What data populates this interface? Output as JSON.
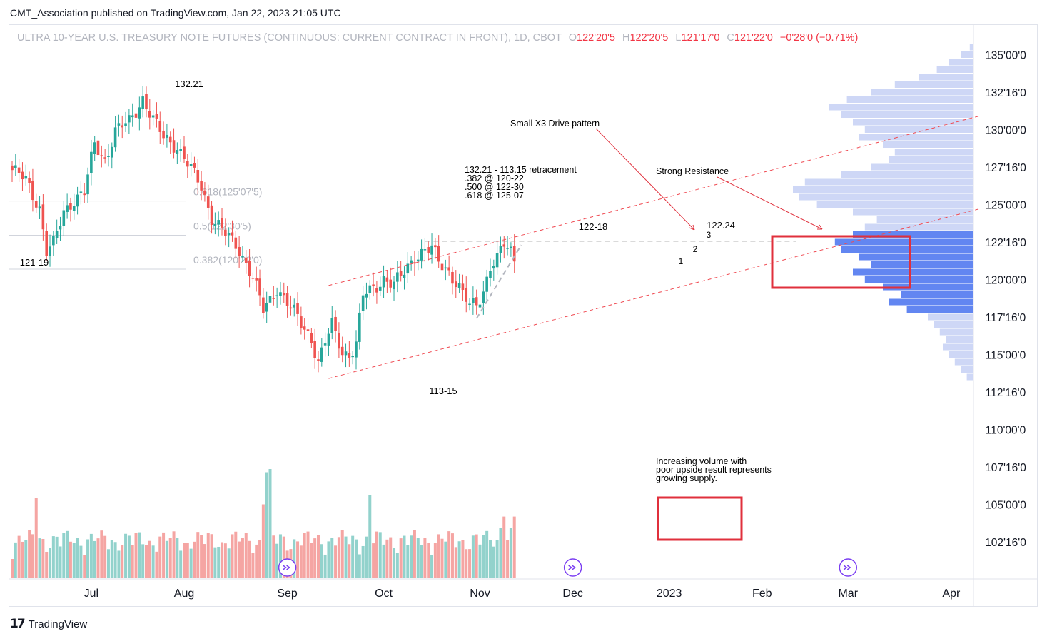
{
  "publisher": {
    "text": "CMT_Association published on TradingView.com, Jan 22, 2023 21:05 UTC"
  },
  "legend": {
    "instrument": "ULTRA 10-YEAR U.S. TREASURY NOTE FUTURES (CONTINUOUS: CURRENT CONTRACT IN FRONT), 1D, CBOT",
    "o_label": "O",
    "o_value": "122'20'5",
    "h_label": "H",
    "h_value": "122'20'5",
    "l_label": "L",
    "l_value": "121'17'0",
    "c_label": "C",
    "c_value": "121'22'0",
    "change": "−0'28'0 (−0.71%)"
  },
  "footer": {
    "brand": "TradingView",
    "logo_icon": "tradingview-logo-icon"
  },
  "colors": {
    "up": "#26a69a",
    "down": "#ef5350",
    "vol_up": "#92d2cc",
    "vol_down": "#f5a5a3",
    "profile_light": "#c5d0f5",
    "profile_strong": "#5a7ff0",
    "annotation_red": "#e0303c",
    "dash_red": "#f04a52"
  },
  "annotations": {
    "high_label": "132.21",
    "low_label_left": "121-19",
    "low_label": "113-15",
    "dec_high_label": "122-18",
    "recent_high_label": "122.24",
    "wave_1": "1",
    "wave_2": "2",
    "wave_3": "3",
    "x3_title": "Small X3 Drive pattern",
    "resistance": "Strong Resistance",
    "retracement_note": "132.21 - 113.15 retracement\n.382 @ 120-22\n.500 @ 122-30\n.618 @ 125-07",
    "volume_note": "Increasing volume with\npoor upside result represents\ngrowing supply.",
    "fib_618": "0.618(125'07'5)",
    "fib_500": "0.5(122'30'5)",
    "fib_382": "0.382(120'22'0)"
  },
  "chart_data": {
    "type": "candlestick",
    "title": "ULTRA 10-YEAR U.S. TREASURY NOTE FUTURES (CONTINUOUS: CURRENT CONTRACT IN FRONT), 1D, CBOT",
    "x_ticks": [
      "Jul",
      "Aug",
      "Sep",
      "Oct",
      "Nov",
      "Dec",
      "2023",
      "Feb",
      "Mar",
      "Apr"
    ],
    "y_ticks": [
      "135'00'0",
      "132'16'0",
      "130'00'0",
      "127'16'0",
      "125'00'0",
      "122'16'0",
      "120'00'0",
      "117'16'0",
      "115'00'0",
      "112'16'0",
      "110'00'0",
      "107'16'0",
      "105'00'0",
      "102'16'0"
    ],
    "y_tick_values": [
      135,
      132.5,
      130,
      127.5,
      125,
      122.5,
      120,
      117.5,
      115,
      112.5,
      110,
      107.5,
      105,
      102.5
    ],
    "close_anchors": [
      [
        0,
        127.3
      ],
      [
        4,
        126.6
      ],
      [
        8,
        124.8
      ],
      [
        10,
        121.9
      ],
      [
        12,
        122.3
      ],
      [
        15,
        124.5
      ],
      [
        18,
        125.4
      ],
      [
        21,
        125.8
      ],
      [
        24,
        129.0
      ],
      [
        27,
        128.0
      ],
      [
        30,
        129.9
      ],
      [
        34,
        130.5
      ],
      [
        38,
        132.1
      ],
      [
        41,
        130.6
      ],
      [
        44,
        129.5
      ],
      [
        48,
        128.9
      ],
      [
        52,
        127.3
      ],
      [
        55,
        126.2
      ],
      [
        58,
        124.2
      ],
      [
        62,
        123.0
      ],
      [
        66,
        122.0
      ],
      [
        70,
        120.2
      ],
      [
        73,
        117.9
      ],
      [
        75,
        118.6
      ],
      [
        77,
        119.5
      ],
      [
        80,
        118.5
      ],
      [
        84,
        117.0
      ],
      [
        87,
        116.1
      ],
      [
        89,
        114.5
      ],
      [
        91,
        115.8
      ],
      [
        93,
        116.9
      ],
      [
        96,
        115.2
      ],
      [
        98,
        115.0
      ],
      [
        100,
        115.7
      ],
      [
        102,
        118.9
      ],
      [
        105,
        119.4
      ],
      [
        108,
        120.1
      ],
      [
        111,
        119.6
      ],
      [
        114,
        120.5
      ],
      [
        117,
        121.6
      ],
      [
        120,
        121.9
      ],
      [
        122,
        122.0
      ],
      [
        124,
        121.2
      ],
      [
        127,
        120.6
      ],
      [
        130,
        119.4
      ],
      [
        133,
        118.2
      ],
      [
        135,
        118.4
      ],
      [
        137,
        119.3
      ],
      [
        139,
        120.9
      ],
      [
        141,
        121.3
      ],
      [
        143,
        122.3
      ],
      [
        145,
        121.9
      ],
      [
        146,
        121.4
      ]
    ],
    "swing_points": [
      {
        "label": "132.21",
        "bar": 38,
        "price": 132.66
      },
      {
        "label": "121-19",
        "bar": 10,
        "price": 121.59
      },
      {
        "label": "113-15",
        "bar": 89,
        "price": 113.47
      },
      {
        "label": "122-18",
        "bar": 120,
        "price": 122.56
      },
      {
        "label": "122.24",
        "bar": 144,
        "price": 122.75
      }
    ],
    "fib_levels": [
      {
        "label": "0.618(125'07'5)",
        "price": 125.23
      },
      {
        "label": "0.5(122'30'5)",
        "price": 122.95
      },
      {
        "label": "0.382(120'22'0)",
        "price": 120.69
      }
    ],
    "channel": {
      "upper": [
        [
          92,
          119.6
        ],
        [
          163,
          130.2
        ]
      ],
      "lower": [
        [
          92,
          113.4
        ],
        [
          163,
          124.0
        ]
      ]
    },
    "resistance_level": 122.56,
    "volume_profile": {
      "bucket_size": 0.5,
      "start_price": 113.5,
      "values": [
        2,
        4,
        6,
        8,
        10,
        9,
        11,
        13,
        15,
        22,
        28,
        24,
        30,
        36,
        40,
        34,
        38,
        44,
        46,
        40,
        36,
        32,
        40,
        52,
        58,
        60,
        56,
        44,
        34,
        28,
        26,
        30,
        38,
        36,
        40,
        44,
        48,
        42,
        34,
        26,
        18,
        12,
        8,
        4,
        1
      ]
    }
  }
}
